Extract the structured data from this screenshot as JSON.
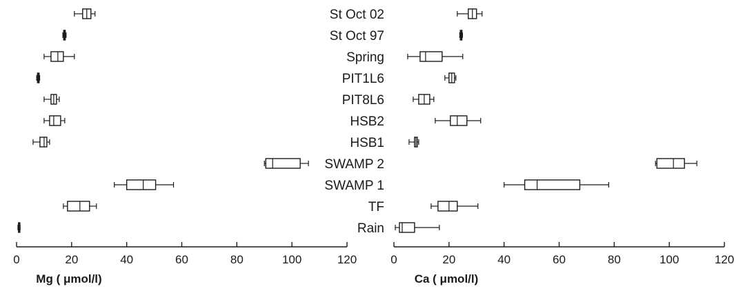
{
  "chart_data": {
    "type": "boxplot",
    "categories": [
      "St Oct 02",
      "St Oct 97",
      "Spring",
      "PIT1L6",
      "PIT8L6",
      "HSB2",
      "HSB1",
      "SWAMP 2",
      "SWAMP 1",
      "TF",
      "Rain"
    ],
    "panels": [
      {
        "name": "Mg",
        "xlabel": "Mg ( μmol/l)",
        "xlim": [
          0,
          120
        ],
        "ticks": [
          0,
          20,
          40,
          60,
          80,
          100,
          120
        ],
        "boxes": [
          {
            "category": "St Oct 02",
            "min": 21,
            "q1": 24,
            "median": 25.5,
            "q3": 27,
            "max": 28.5
          },
          {
            "category": "St Oct 97",
            "min": 16.8,
            "q1": 17.1,
            "median": 17.4,
            "q3": 17.7,
            "max": 18
          },
          {
            "category": "Spring",
            "min": 10,
            "q1": 12.5,
            "median": 15,
            "q3": 17,
            "max": 21
          },
          {
            "category": "PIT1L6",
            "min": 7.3,
            "q1": 7.6,
            "median": 7.9,
            "q3": 8.2,
            "max": 8.4
          },
          {
            "category": "PIT8L6",
            "min": 10,
            "q1": 12.5,
            "median": 13.5,
            "q3": 14.5,
            "max": 15.5
          },
          {
            "category": "HSB2",
            "min": 10,
            "q1": 12,
            "median": 13.5,
            "q3": 16,
            "max": 17.5
          },
          {
            "category": "HSB1",
            "min": 6,
            "q1": 8.5,
            "median": 10,
            "q3": 11,
            "max": 12
          },
          {
            "category": "SWAMP 2",
            "min": 90,
            "q1": 90.5,
            "median": 93,
            "q3": 103,
            "max": 106
          },
          {
            "category": "SWAMP 1",
            "min": 35.5,
            "q1": 40,
            "median": 46,
            "q3": 50.5,
            "max": 57
          },
          {
            "category": "TF",
            "min": 17,
            "q1": 18.5,
            "median": 23,
            "q3": 26.5,
            "max": 29
          },
          {
            "category": "Rain",
            "min": 0.5,
            "q1": 0.7,
            "median": 0.9,
            "q3": 1.1,
            "max": 1.3
          }
        ]
      },
      {
        "name": "Ca",
        "xlabel": "Ca ( μmol/l)",
        "xlim": [
          0,
          120
        ],
        "ticks": [
          0,
          20,
          40,
          60,
          80,
          100,
          120
        ],
        "boxes": [
          {
            "category": "St Oct 02",
            "min": 23,
            "q1": 27,
            "median": 28.5,
            "q3": 30,
            "max": 32
          },
          {
            "category": "St Oct 97",
            "min": 23.9,
            "q1": 24.1,
            "median": 24.4,
            "q3": 24.7,
            "max": 24.9
          },
          {
            "category": "Spring",
            "min": 5,
            "q1": 9.5,
            "median": 11.5,
            "q3": 17.5,
            "max": 25
          },
          {
            "category": "PIT1L6",
            "min": 18.5,
            "q1": 20,
            "median": 21,
            "q3": 22,
            "max": 22.5
          },
          {
            "category": "PIT8L6",
            "min": 7,
            "q1": 9,
            "median": 11,
            "q3": 13,
            "max": 14.5
          },
          {
            "category": "HSB2",
            "min": 15,
            "q1": 20.5,
            "median": 23,
            "q3": 26.5,
            "max": 31.5
          },
          {
            "category": "HSB1",
            "min": 5.5,
            "q1": 7.5,
            "median": 8,
            "q3": 8.5,
            "max": 9
          },
          {
            "category": "SWAMP 2",
            "min": 95,
            "q1": 95.5,
            "median": 101.5,
            "q3": 105.5,
            "max": 110
          },
          {
            "category": "SWAMP 1",
            "min": 40,
            "q1": 47.5,
            "median": 52,
            "q3": 67.5,
            "max": 78
          },
          {
            "category": "TF",
            "min": 13.5,
            "q1": 16,
            "median": 20,
            "q3": 23,
            "max": 30.5
          },
          {
            "category": "Rain",
            "min": 0.5,
            "q1": 2,
            "median": 3,
            "q3": 7.5,
            "max": 16.5
          }
        ]
      }
    ]
  }
}
